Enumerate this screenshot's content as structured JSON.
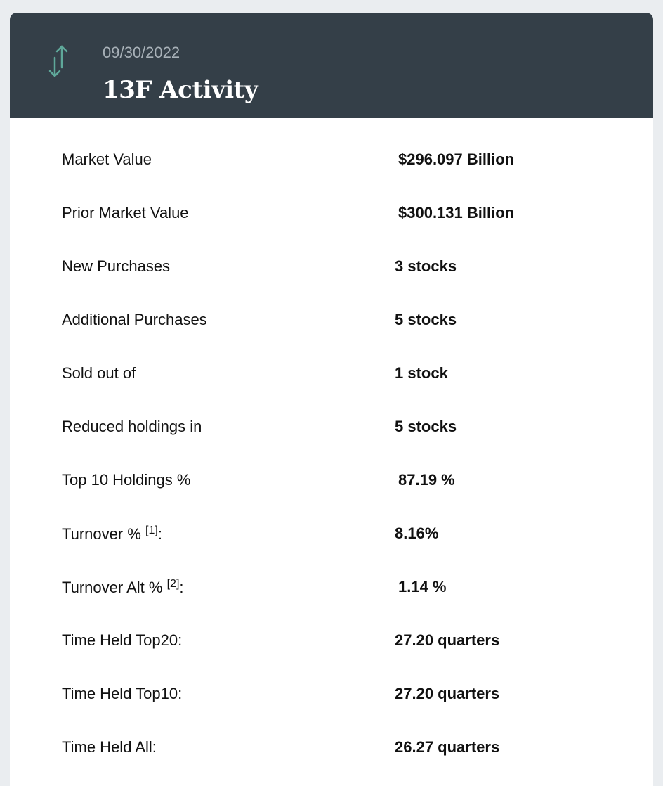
{
  "header": {
    "date": "09/30/2022",
    "title": "13F Activity",
    "icon": "up-down-arrows-icon",
    "icon_color": "#5fa89a",
    "background": "#343f48"
  },
  "rows": [
    {
      "label": "Market Value",
      "value": "$296.097 Billion"
    },
    {
      "label": "Prior Market Value",
      "value": "$300.131 Billion"
    },
    {
      "label": "New Purchases",
      "value": "3 stocks"
    },
    {
      "label": "Additional Purchases",
      "value": "5 stocks"
    },
    {
      "label": "Sold out of",
      "value": "1 stock"
    },
    {
      "label": "Reduced holdings in",
      "value": "5 stocks"
    },
    {
      "label": "Top 10 Holdings %",
      "value": "87.19 %"
    },
    {
      "label": "Turnover %",
      "footnote": "[1]",
      "suffix": ":",
      "value": "8.16%"
    },
    {
      "label": "Turnover Alt %",
      "footnote": "[2]",
      "suffix": ":",
      "value": "1.14 %"
    },
    {
      "label": "Time Held Top20:",
      "value": "27.20 quarters"
    },
    {
      "label": "Time Held Top10:",
      "value": "27.20 quarters"
    },
    {
      "label": "Time Held All:",
      "value": "26.27 quarters"
    }
  ]
}
